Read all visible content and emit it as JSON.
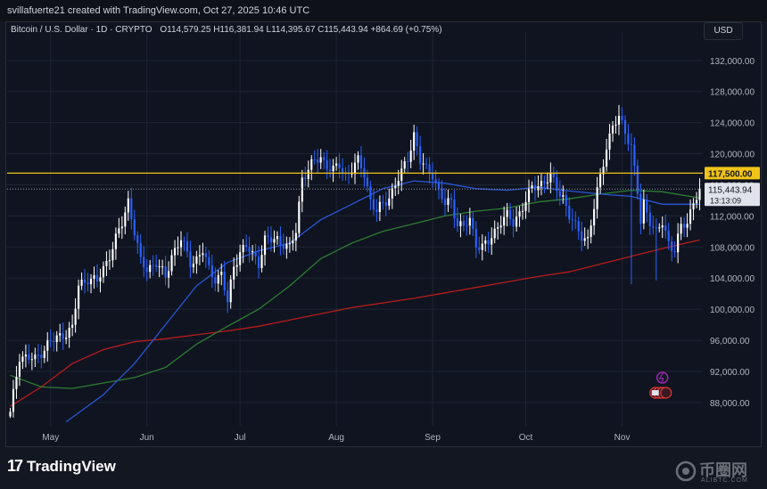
{
  "header": {
    "attribution": "svillafuerte21 created with TradingView.com, Oct 27, 2025 10:46 UTC",
    "symbol_line": "Bitcoin / U.S. Dollar · 1D · CRYPTO",
    "ohlc": "O114,579.25  H116,381.94  L114,395.67  C115,443.94  +864.69 (+0.75%)"
  },
  "currency_badge": "USD",
  "brand": {
    "name": "TradingView"
  },
  "watermark": {
    "text": "币圈网",
    "sub": "ALIBTC.COM"
  },
  "colors": {
    "up": "#ffffff",
    "down": "#2962ff",
    "ma_blue": "#2a56d6",
    "ma_green": "#2e7d32",
    "ma_red": "#b71c1c",
    "resistance": "#f0c419",
    "grid": "#1f2433"
  },
  "chart_data": {
    "type": "candlestick",
    "y_axis_ticks": [
      "132,000.00",
      "128,000.00",
      "124,000.00",
      "120,000.00",
      "116,000.00",
      "112,000.00",
      "108,000.00",
      "104,000.00",
      "100,000.00",
      "96,000.00",
      "92,000.00",
      "88,000.00"
    ],
    "y_tick_values": [
      132000,
      128000,
      124000,
      120000,
      116000,
      112000,
      108000,
      104000,
      100000,
      96000,
      92000,
      88000
    ],
    "ylim": [
      85000,
      134500
    ],
    "x_axis_labels": [
      "May",
      "Jun",
      "Jul",
      "Aug",
      "Sep",
      "Oct",
      "Nov"
    ],
    "x_label_days": [
      13,
      44,
      74,
      105,
      136,
      166,
      197
    ],
    "xlim": [
      -1,
      223
    ],
    "resistance": {
      "label": "117,500.00",
      "value": 117500
    },
    "last_price": {
      "label": "115,443.94",
      "value": 115443.94,
      "countdown": "13:13:09"
    },
    "close_path": [
      [
        0,
        86500
      ],
      [
        3,
        94000
      ],
      [
        8,
        93500
      ],
      [
        12,
        95500
      ],
      [
        16,
        96500
      ],
      [
        20,
        97500
      ],
      [
        22,
        103000
      ],
      [
        25,
        104000
      ],
      [
        28,
        103500
      ],
      [
        32,
        107000
      ],
      [
        36,
        111000
      ],
      [
        38,
        114000
      ],
      [
        40,
        110000
      ],
      [
        42,
        106000
      ],
      [
        44,
        105200
      ],
      [
        47,
        106000
      ],
      [
        50,
        104000
      ],
      [
        52,
        107000
      ],
      [
        55,
        109000
      ],
      [
        58,
        106000
      ],
      [
        60,
        106500
      ],
      [
        62,
        107500
      ],
      [
        64,
        105000
      ],
      [
        66,
        104000
      ],
      [
        68,
        104500
      ],
      [
        70,
        100800
      ],
      [
        72,
        105500
      ],
      [
        74,
        107500
      ],
      [
        76,
        108000
      ],
      [
        78,
        107000
      ],
      [
        80,
        106000
      ],
      [
        82,
        109000
      ],
      [
        84,
        108800
      ],
      [
        86,
        109000
      ],
      [
        88,
        108500
      ],
      [
        90,
        107800
      ],
      [
        92,
        110000
      ],
      [
        94,
        117000
      ],
      [
        96,
        118000
      ],
      [
        98,
        119000
      ],
      [
        100,
        119500
      ],
      [
        102,
        118500
      ],
      [
        104,
        117800
      ],
      [
        106,
        118500
      ],
      [
        108,
        117300
      ],
      [
        110,
        118000
      ],
      [
        112,
        119000
      ],
      [
        114,
        117500
      ],
      [
        116,
        114000
      ],
      [
        118,
        112500
      ],
      [
        120,
        113500
      ],
      [
        122,
        114500
      ],
      [
        124,
        116000
      ],
      [
        126,
        117500
      ],
      [
        128,
        119500
      ],
      [
        130,
        122500
      ],
      [
        132,
        119000
      ],
      [
        134,
        118000
      ],
      [
        136,
        117500
      ],
      [
        138,
        115000
      ],
      [
        140,
        113500
      ],
      [
        142,
        114000
      ],
      [
        144,
        111000
      ],
      [
        146,
        110500
      ],
      [
        148,
        111500
      ],
      [
        150,
        108500
      ],
      [
        152,
        108000
      ],
      [
        154,
        108500
      ],
      [
        156,
        110000
      ],
      [
        158,
        111500
      ],
      [
        160,
        112000
      ],
      [
        162,
        111000
      ],
      [
        164,
        112500
      ],
      [
        166,
        114000
      ],
      [
        168,
        115500
      ],
      [
        170,
        116000
      ],
      [
        172,
        116500
      ],
      [
        174,
        117000
      ],
      [
        176,
        115500
      ],
      [
        178,
        114500
      ],
      [
        180,
        112000
      ],
      [
        182,
        110500
      ],
      [
        184,
        109500
      ],
      [
        186,
        109000
      ],
      [
        188,
        113000
      ],
      [
        190,
        117000
      ],
      [
        192,
        121000
      ],
      [
        194,
        123500
      ],
      [
        196,
        124500
      ],
      [
        198,
        123000
      ],
      [
        200,
        121000
      ],
      [
        202,
        115000
      ],
      [
        203,
        111000
      ],
      [
        204,
        113500
      ],
      [
        206,
        111500
      ],
      [
        208,
        109800
      ],
      [
        210,
        111000
      ],
      [
        212,
        108500
      ],
      [
        214,
        107800
      ],
      [
        216,
        110500
      ],
      [
        218,
        111000
      ],
      [
        220,
        114000
      ],
      [
        222,
        115444
      ]
    ],
    "ma_blue": [
      [
        18,
        85500
      ],
      [
        30,
        89000
      ],
      [
        40,
        93000
      ],
      [
        50,
        98000
      ],
      [
        60,
        103000
      ],
      [
        70,
        106000
      ],
      [
        80,
        107500
      ],
      [
        90,
        108500
      ],
      [
        100,
        111500
      ],
      [
        110,
        113500
      ],
      [
        120,
        115500
      ],
      [
        130,
        116500
      ],
      [
        140,
        116200
      ],
      [
        150,
        115500
      ],
      [
        160,
        115300
      ],
      [
        170,
        115700
      ],
      [
        180,
        115200
      ],
      [
        190,
        114800
      ],
      [
        200,
        114500
      ],
      [
        210,
        113500
      ],
      [
        222,
        113500
      ]
    ],
    "ma_green": [
      [
        0,
        91500
      ],
      [
        10,
        90000
      ],
      [
        20,
        89800
      ],
      [
        30,
        90500
      ],
      [
        40,
        91200
      ],
      [
        50,
        92500
      ],
      [
        60,
        95500
      ],
      [
        70,
        97800
      ],
      [
        80,
        100000
      ],
      [
        90,
        103000
      ],
      [
        100,
        106500
      ],
      [
        110,
        108500
      ],
      [
        120,
        110000
      ],
      [
        130,
        111000
      ],
      [
        140,
        112000
      ],
      [
        150,
        112600
      ],
      [
        160,
        113000
      ],
      [
        170,
        113800
      ],
      [
        180,
        114200
      ],
      [
        190,
        114800
      ],
      [
        200,
        115300
      ],
      [
        210,
        115100
      ],
      [
        222,
        114300
      ]
    ],
    "ma_red": [
      [
        0,
        87500
      ],
      [
        10,
        90000
      ],
      [
        20,
        93000
      ],
      [
        30,
        94800
      ],
      [
        40,
        95800
      ],
      [
        50,
        96200
      ],
      [
        60,
        96700
      ],
      [
        70,
        97200
      ],
      [
        80,
        97800
      ],
      [
        90,
        98600
      ],
      [
        100,
        99400
      ],
      [
        110,
        100200
      ],
      [
        120,
        100800
      ],
      [
        130,
        101400
      ],
      [
        140,
        102100
      ],
      [
        150,
        102800
      ],
      [
        160,
        103500
      ],
      [
        170,
        104200
      ],
      [
        180,
        104800
      ],
      [
        190,
        105800
      ],
      [
        200,
        106800
      ],
      [
        210,
        107800
      ],
      [
        222,
        108900
      ]
    ],
    "spike_lows": [
      [
        0,
        86000
      ],
      [
        200,
        103200
      ],
      [
        208,
        103700
      ]
    ]
  }
}
